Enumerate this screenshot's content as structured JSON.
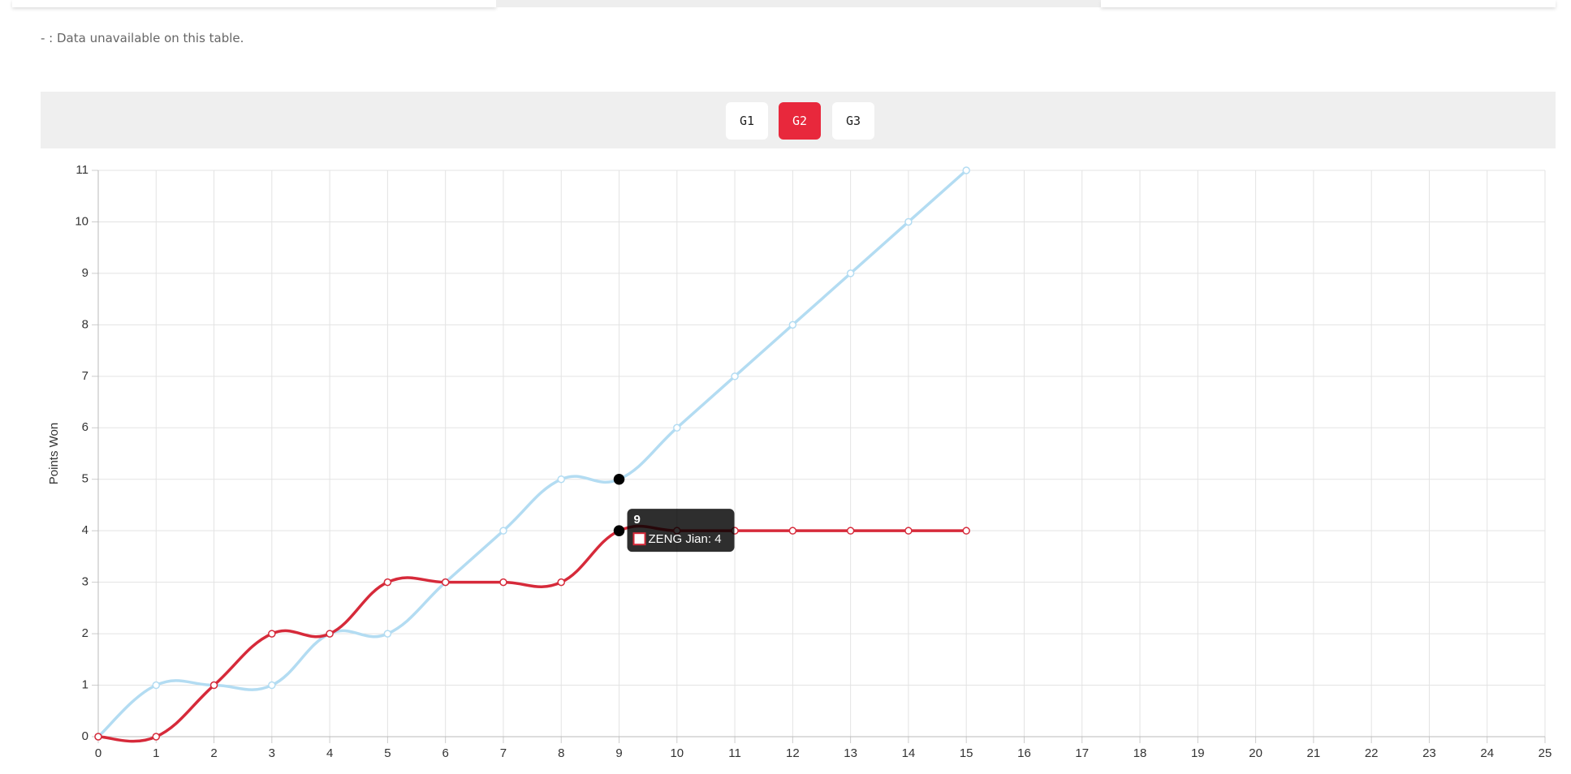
{
  "header": {
    "note": "- : Data unavailable on this table."
  },
  "tabs": [
    "G1",
    "G2",
    "G3"
  ],
  "active_tab": 1,
  "chart_data": {
    "type": "line",
    "y_label": "Points Won",
    "x": [
      0,
      1,
      2,
      3,
      4,
      5,
      6,
      7,
      8,
      9,
      10,
      11,
      12,
      13,
      14,
      15
    ],
    "series": [
      {
        "color": "#b3dcf2",
        "values": [
          0,
          1,
          1,
          1,
          2,
          2,
          3,
          4,
          5,
          5,
          6,
          7,
          8,
          9,
          10,
          11
        ]
      },
      {
        "color": "#d62a3a",
        "values": [
          0,
          0,
          1,
          2,
          2,
          3,
          3,
          3,
          3,
          4,
          4,
          4,
          4,
          4,
          4,
          4
        ]
      }
    ],
    "xlim": [
      0,
      25
    ],
    "xticks": [
      0,
      1,
      2,
      3,
      4,
      5,
      6,
      7,
      8,
      9,
      10,
      11,
      12,
      13,
      14,
      15,
      16,
      17,
      18,
      19,
      20,
      21,
      22,
      23,
      24,
      25
    ],
    "ylim": [
      0,
      11
    ],
    "yticks": [
      0,
      1,
      2,
      3,
      4,
      5,
      6,
      7,
      8,
      9,
      10,
      11
    ],
    "grid": true,
    "tooltip": {
      "x": 9,
      "label": "ZENG Jian: 4"
    }
  }
}
